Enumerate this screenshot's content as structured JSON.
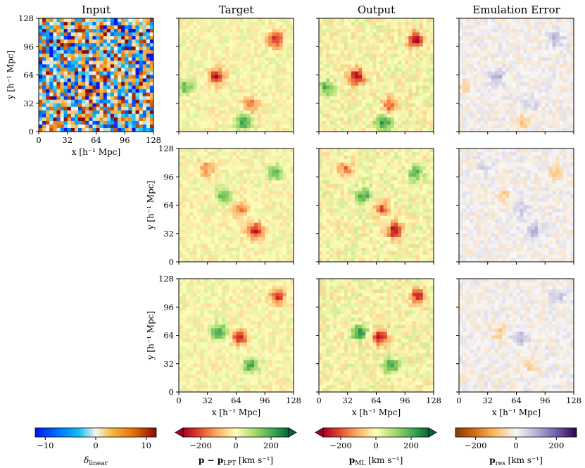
{
  "chart_data": {
    "type": "heatmap",
    "column_titles": [
      "Input",
      "Target",
      "Output",
      "Emulation Error"
    ],
    "x_axis": {
      "label": "x [h⁻¹ Mpc]",
      "range": [
        0,
        128
      ],
      "ticks": [
        "0",
        "32",
        "64",
        "96",
        "128"
      ]
    },
    "y_axis": {
      "label": "y [h⁻¹ Mpc]",
      "range": [
        0,
        128
      ],
      "ticks": [
        "0",
        "32",
        "64",
        "96",
        "128"
      ]
    },
    "grid_resolution": 32,
    "rows": 3,
    "panels": [
      {
        "column": "Input",
        "row": 1,
        "field": "delta_linear"
      },
      {
        "column": "Target",
        "row": 1,
        "field": "p - p_LPT"
      },
      {
        "column": "Output",
        "row": 1,
        "field": "p_ML"
      },
      {
        "column": "Emulation Error",
        "row": 1,
        "field": "p_res"
      },
      {
        "column": "Target",
        "row": 2,
        "field": "p - p_LPT"
      },
      {
        "column": "Output",
        "row": 2,
        "field": "p_ML"
      },
      {
        "column": "Emulation Error",
        "row": 2,
        "field": "p_res"
      },
      {
        "column": "Target",
        "row": 3,
        "field": "p - p_LPT"
      },
      {
        "column": "Output",
        "row": 3,
        "field": "p_ML"
      },
      {
        "column": "Emulation Error",
        "row": 3,
        "field": "p_res"
      }
    ],
    "colorbars": [
      {
        "label": "δ",
        "label_sub": "linear",
        "range": [
          -12,
          12
        ],
        "ticks": [
          "−10",
          "0",
          "10"
        ],
        "tick_values": [
          -10,
          0,
          10
        ],
        "colormap": "blue-cyan-white-orange-red",
        "extend": "neither"
      },
      {
        "label": "p − p",
        "label_sub": "LPT",
        "label_unit": "[km s⁻¹]",
        "range": [
          -300,
          300
        ],
        "ticks": [
          "−200",
          "0",
          "200"
        ],
        "tick_values": [
          -200,
          0,
          200
        ],
        "colormap": "RdYlGn",
        "extend": "both"
      },
      {
        "label": "p",
        "label_sub": "ML",
        "label_unit": "[km s⁻¹]",
        "range": [
          -300,
          300
        ],
        "ticks": [
          "−200",
          "0",
          "200"
        ],
        "tick_values": [
          -200,
          0,
          200
        ],
        "colormap": "RdYlGn",
        "extend": "both"
      },
      {
        "label": "p",
        "label_sub": "res",
        "label_unit": "[km s⁻¹]",
        "range": [
          -300,
          300
        ],
        "ticks": [
          "−200",
          "0",
          "200"
        ],
        "tick_values": [
          -200,
          0,
          200
        ],
        "colormap": "PuOr",
        "extend": "neither"
      }
    ],
    "features": [
      {
        "panel_row": 1,
        "x": 42,
        "y": 62,
        "value": -280,
        "note": "red blob"
      },
      {
        "panel_row": 1,
        "x": 108,
        "y": 104,
        "value": -260,
        "note": "red blob"
      },
      {
        "panel_row": 1,
        "x": 80,
        "y": 30,
        "value": -160,
        "note": "red ring"
      },
      {
        "panel_row": 1,
        "x": 72,
        "y": 10,
        "value": 220,
        "note": "green"
      },
      {
        "panel_row": 1,
        "x": 8,
        "y": 50,
        "value": 170,
        "note": "green"
      },
      {
        "panel_row": 2,
        "x": 85,
        "y": 35,
        "value": -270,
        "note": "red blob"
      },
      {
        "panel_row": 2,
        "x": 70,
        "y": 60,
        "value": -170
      },
      {
        "panel_row": 2,
        "x": 50,
        "y": 75,
        "value": 180
      },
      {
        "panel_row": 2,
        "x": 108,
        "y": 100,
        "value": 170
      },
      {
        "panel_row": 2,
        "x": 30,
        "y": 105,
        "value": -140
      },
      {
        "panel_row": 3,
        "x": 68,
        "y": 62,
        "value": -260,
        "note": "red streak"
      },
      {
        "panel_row": 3,
        "x": 45,
        "y": 68,
        "value": 230,
        "note": "green streak"
      },
      {
        "panel_row": 3,
        "x": 80,
        "y": 30,
        "value": 200
      },
      {
        "panel_row": 3,
        "x": 110,
        "y": 108,
        "value": -230
      }
    ]
  }
}
